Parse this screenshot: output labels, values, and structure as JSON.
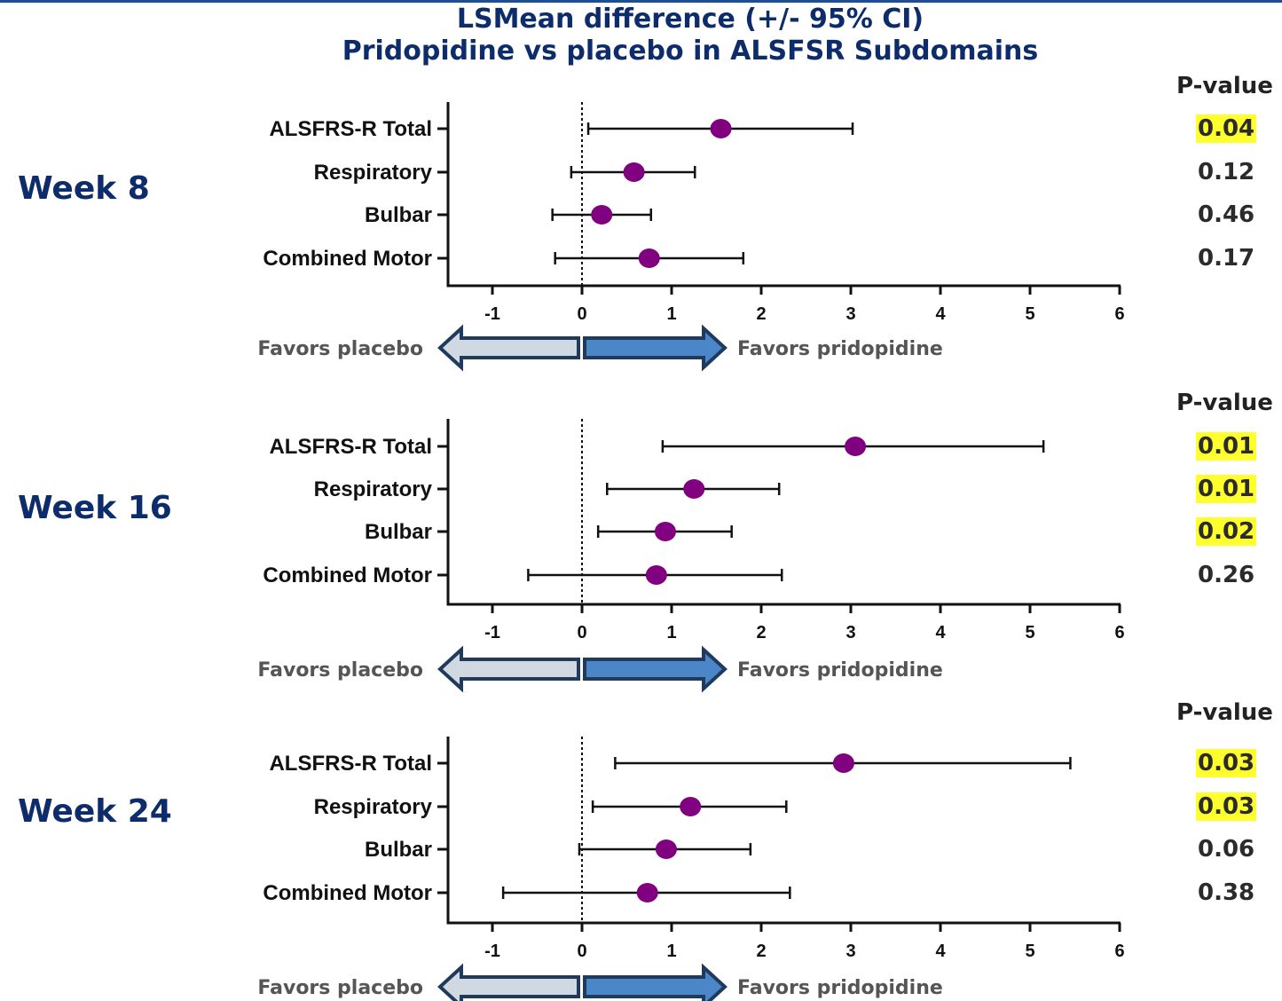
{
  "title": {
    "line1": "LSMean difference (+/- 95% CI)",
    "line2": "Pridopidine vs placebo in ALSFSR Subdomains"
  },
  "pvalue_header": "P-value",
  "favors_left": "Favors placebo",
  "favors_right": "Favors pridopidine",
  "colors": {
    "title": "#0d2c6b",
    "point": "#800080",
    "highlight": "#ffff2e",
    "arrow_left_fill": "#d0d8e2",
    "arrow_right_fill": "#4a86c8",
    "arrow_outline": "#1f3a5a"
  },
  "chart_data": [
    {
      "type": "scatter",
      "panel": "Week 8",
      "categories": [
        "ALSFRS-R Total",
        "Respiratory",
        "Bulbar",
        "Combined Motor"
      ],
      "estimate": [
        1.55,
        0.58,
        0.22,
        0.75
      ],
      "ci_lower": [
        0.07,
        -0.12,
        -0.33,
        -0.3
      ],
      "ci_upper": [
        3.02,
        1.26,
        0.77,
        1.8
      ],
      "p_values": [
        "0.04",
        "0.12",
        "0.46",
        "0.17"
      ],
      "significant": [
        true,
        false,
        false,
        false
      ],
      "xticks": [
        "-1",
        "0",
        "1",
        "2",
        "3",
        "4",
        "5",
        "6"
      ],
      "xlim": [
        -1.5,
        6
      ],
      "reference_line": 0
    },
    {
      "type": "scatter",
      "panel": "Week 16",
      "categories": [
        "ALSFRS-R Total",
        "Respiratory",
        "Bulbar",
        "Combined Motor"
      ],
      "estimate": [
        3.05,
        1.25,
        0.93,
        0.83
      ],
      "ci_lower": [
        0.9,
        0.28,
        0.18,
        -0.6
      ],
      "ci_upper": [
        5.15,
        2.2,
        1.67,
        2.23
      ],
      "p_values": [
        "0.01",
        "0.01",
        "0.02",
        "0.26"
      ],
      "significant": [
        true,
        true,
        true,
        false
      ],
      "xticks": [
        "-1",
        "0",
        "1",
        "2",
        "3",
        "4",
        "5",
        "6"
      ],
      "xlim": [
        -1.5,
        6
      ],
      "reference_line": 0
    },
    {
      "type": "scatter",
      "panel": "Week 24",
      "categories": [
        "ALSFRS-R Total",
        "Respiratory",
        "Bulbar",
        "Combined Motor"
      ],
      "estimate": [
        2.92,
        1.21,
        0.94,
        0.73
      ],
      "ci_lower": [
        0.37,
        0.12,
        -0.03,
        -0.88
      ],
      "ci_upper": [
        5.45,
        2.28,
        1.88,
        2.32
      ],
      "p_values": [
        "0.03",
        "0.03",
        "0.06",
        "0.38"
      ],
      "significant": [
        true,
        true,
        false,
        false
      ],
      "xticks": [
        "-1",
        "0",
        "1",
        "2",
        "3",
        "4",
        "5",
        "6"
      ],
      "xlim": [
        -1.5,
        6
      ],
      "reference_line": 0
    }
  ]
}
